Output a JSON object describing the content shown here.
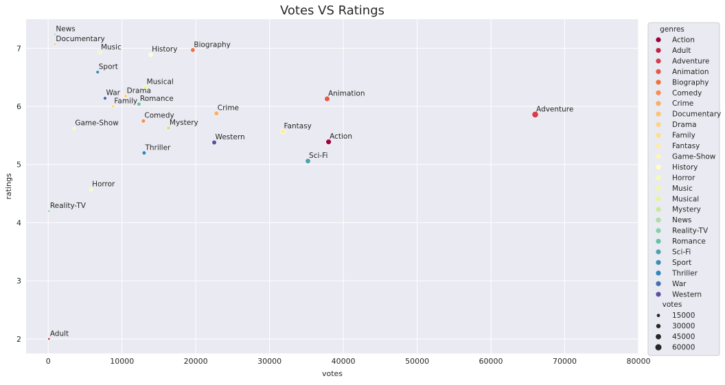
{
  "chart_data": {
    "type": "scatter",
    "title": "Votes VS Ratings",
    "xlabel": "votes",
    "ylabel": "ratings",
    "xlim": [
      -3000,
      80000
    ],
    "ylim": [
      1.75,
      7.5
    ],
    "xticks": [
      0,
      10000,
      20000,
      30000,
      40000,
      50000,
      60000,
      70000,
      80000
    ],
    "yticks": [
      2,
      3,
      4,
      5,
      6,
      7
    ],
    "grid": true,
    "legend_position": "right-outside",
    "hue_title": "genres",
    "size_title": "votes",
    "size_legend": [
      "15000",
      "30000",
      "45000",
      "60000"
    ],
    "points": [
      {
        "genre": "Action",
        "x": 38000,
        "y": 5.39,
        "color": "#9e0142"
      },
      {
        "genre": "Adult",
        "x": 100,
        "y": 2.0,
        "color": "#c0243f"
      },
      {
        "genre": "Adventure",
        "x": 66000,
        "y": 5.86,
        "color": "#d53e4f"
      },
      {
        "genre": "Animation",
        "x": 37800,
        "y": 6.13,
        "color": "#e45a4a"
      },
      {
        "genre": "Biography",
        "x": 19600,
        "y": 6.97,
        "color": "#f46d43"
      },
      {
        "genre": "Comedy",
        "x": 12900,
        "y": 5.75,
        "color": "#f88c51"
      },
      {
        "genre": "Crime",
        "x": 22800,
        "y": 5.88,
        "color": "#fdae61"
      },
      {
        "genre": "Documentary",
        "x": 900,
        "y": 7.07,
        "color": "#fdc373"
      },
      {
        "genre": "Drama",
        "x": 10500,
        "y": 6.18,
        "color": "#fed48a"
      },
      {
        "genre": "Family",
        "x": 8800,
        "y": 6.0,
        "color": "#fee08b"
      },
      {
        "genre": "Fantasy",
        "x": 31800,
        "y": 5.57,
        "color": "#feeda1"
      },
      {
        "genre": "Game-Show",
        "x": 3500,
        "y": 5.62,
        "color": "#fff5b4"
      },
      {
        "genre": "History",
        "x": 13900,
        "y": 6.89,
        "color": "#ffffbf"
      },
      {
        "genre": "Horror",
        "x": 5800,
        "y": 4.57,
        "color": "#f6fbb2"
      },
      {
        "genre": "Music",
        "x": 7000,
        "y": 6.93,
        "color": "#eef8a8"
      },
      {
        "genre": "Musical",
        "x": 13200,
        "y": 6.33,
        "color": "#e6f598"
      },
      {
        "genre": "Mystery",
        "x": 16300,
        "y": 5.63,
        "color": "#c7e89e"
      },
      {
        "genre": "News",
        "x": 900,
        "y": 7.24,
        "color": "#abdda4"
      },
      {
        "genre": "Reality-TV",
        "x": 100,
        "y": 4.2,
        "color": "#89d0a4"
      },
      {
        "genre": "Romance",
        "x": 12300,
        "y": 6.04,
        "color": "#66c2a5"
      },
      {
        "genre": "Sci-Fi",
        "x": 35200,
        "y": 5.06,
        "color": "#4fa3b0"
      },
      {
        "genre": "Sport",
        "x": 6700,
        "y": 6.59,
        "color": "#3f8db6"
      },
      {
        "genre": "Thriller",
        "x": 13000,
        "y": 5.2,
        "color": "#3288bd"
      },
      {
        "genre": "War",
        "x": 7700,
        "y": 6.14,
        "color": "#466eb5"
      },
      {
        "genre": "Western",
        "x": 22500,
        "y": 5.38,
        "color": "#5e4fa2"
      }
    ]
  }
}
